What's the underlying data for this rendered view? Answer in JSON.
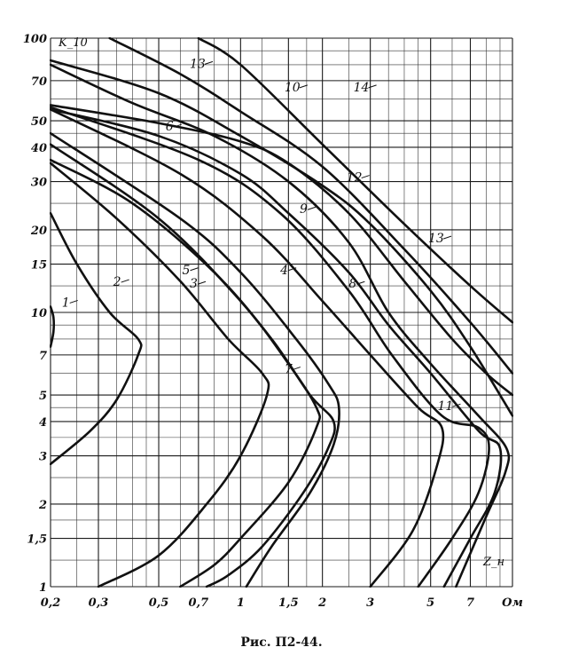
{
  "chart_data": {
    "type": "line",
    "title": "",
    "xlabel": "Z_н",
    "ylabel": "K_10",
    "xscale": "log",
    "yscale": "log",
    "xlim": [
      0.2,
      10
    ],
    "ylim": [
      1,
      100
    ],
    "grid": true,
    "x_ticks": [
      {
        "v": 0.2,
        "label": "0,2"
      },
      {
        "v": 0.3,
        "label": "0,3"
      },
      {
        "v": 0.5,
        "label": "0,5"
      },
      {
        "v": 0.7,
        "label": "0,7"
      },
      {
        "v": 1,
        "label": "1"
      },
      {
        "v": 1.5,
        "label": "1,5"
      },
      {
        "v": 2,
        "label": "2"
      },
      {
        "v": 3,
        "label": "3"
      },
      {
        "v": 5,
        "label": "5"
      },
      {
        "v": 7,
        "label": "7"
      },
      {
        "v": 10,
        "label": "Ом"
      }
    ],
    "y_ticks": [
      {
        "v": 1,
        "label": "1"
      },
      {
        "v": 1.5,
        "label": "1,5"
      },
      {
        "v": 2,
        "label": "2"
      },
      {
        "v": 3,
        "label": "3"
      },
      {
        "v": 4,
        "label": "4"
      },
      {
        "v": 5,
        "label": "5"
      },
      {
        "v": 7,
        "label": "7"
      },
      {
        "v": 10,
        "label": "10"
      },
      {
        "v": 15,
        "label": "15"
      },
      {
        "v": 20,
        "label": "20"
      },
      {
        "v": 30,
        "label": "30"
      },
      {
        "v": 40,
        "label": "40"
      },
      {
        "v": 50,
        "label": "50"
      },
      {
        "v": 70,
        "label": "70"
      },
      {
        "v": 100,
        "label": "100"
      }
    ],
    "series": [
      {
        "name": "1",
        "points": [
          [
            0.2,
            7.5
          ],
          [
            0.205,
            8.5
          ],
          [
            0.205,
            9.6
          ],
          [
            0.2,
            10.5
          ]
        ]
      },
      {
        "name": "2",
        "points": [
          [
            0.2,
            23
          ],
          [
            0.25,
            15
          ],
          [
            0.33,
            10
          ],
          [
            0.42,
            8
          ],
          [
            0.42,
            7
          ],
          [
            0.35,
            4.8
          ],
          [
            0.28,
            3.7
          ],
          [
            0.2,
            2.8
          ]
        ]
      },
      {
        "name": "3",
        "points": [
          [
            0.2,
            35
          ],
          [
            0.35,
            22
          ],
          [
            0.6,
            13
          ],
          [
            0.9,
            8
          ],
          [
            1.2,
            6
          ],
          [
            1.25,
            5
          ],
          [
            1.0,
            3
          ],
          [
            0.75,
            2
          ],
          [
            0.5,
            1.3
          ],
          [
            0.3,
            1
          ]
        ]
      },
      {
        "name": "4",
        "points": [
          [
            0.2,
            41
          ],
          [
            0.5,
            22
          ],
          [
            1.0,
            11
          ],
          [
            1.5,
            6.5
          ],
          [
            1.9,
            4.5
          ],
          [
            1.9,
            3.8
          ],
          [
            1.5,
            2.4
          ],
          [
            1.0,
            1.5
          ],
          [
            0.8,
            1.2
          ],
          [
            0.6,
            1
          ]
        ]
      },
      {
        "name": "5",
        "points": [
          [
            0.2,
            36
          ],
          [
            0.4,
            25
          ],
          [
            0.8,
            14
          ],
          [
            1.3,
            8
          ],
          [
            1.8,
            5
          ],
          [
            2.2,
            4
          ],
          [
            2.1,
            3.2
          ],
          [
            1.7,
            2.2
          ],
          [
            1.2,
            1.4
          ],
          [
            0.9,
            1.1
          ],
          [
            0.75,
            1
          ]
        ]
      },
      {
        "name": "7",
        "points": [
          [
            0.2,
            45
          ],
          [
            0.6,
            22
          ],
          [
            1.0,
            14
          ],
          [
            1.6,
            8
          ],
          [
            2.1,
            5.5
          ],
          [
            2.3,
            4.5
          ],
          [
            2.2,
            3.3
          ],
          [
            1.8,
            2.2
          ],
          [
            1.3,
            1.4
          ],
          [
            1.05,
            1
          ]
        ]
      },
      {
        "name": "8",
        "points": [
          [
            0.2,
            55
          ],
          [
            0.6,
            32
          ],
          [
            1.2,
            19
          ],
          [
            2.0,
            11
          ],
          [
            3.0,
            7
          ],
          [
            4.5,
            4.5
          ],
          [
            5.5,
            3.8
          ],
          [
            5.3,
            2.8
          ],
          [
            4.3,
            1.6
          ],
          [
            3.0,
            1
          ]
        ]
      },
      {
        "name": "9",
        "points": [
          [
            0.2,
            56
          ],
          [
            0.7,
            36
          ],
          [
            1.4,
            23
          ],
          [
            2.5,
            12
          ],
          [
            3.6,
            7
          ],
          [
            5.5,
            4.2
          ],
          [
            7.5,
            3.8
          ],
          [
            8.2,
            3.2
          ],
          [
            7.5,
            2.2
          ],
          [
            6.0,
            1.5
          ],
          [
            4.5,
            1
          ]
        ]
      },
      {
        "name": "6",
        "points": [
          [
            0.2,
            55
          ],
          [
            0.5,
            44
          ],
          [
            1.0,
            32
          ],
          [
            1.5,
            23
          ],
          [
            2.5,
            14
          ],
          [
            3.5,
            9
          ],
          [
            5.0,
            6
          ],
          [
            7.5,
            3.7
          ],
          [
            9.0,
            3.2
          ],
          [
            8.6,
            2.2
          ],
          [
            7.0,
            1.5
          ],
          [
            5.6,
            1
          ]
        ]
      },
      {
        "name": "11",
        "points": [
          [
            0.2,
            80
          ],
          [
            0.4,
            58
          ],
          [
            0.8,
            44
          ],
          [
            1.5,
            30
          ],
          [
            2.5,
            18
          ],
          [
            3.5,
            10
          ],
          [
            5.0,
            6.5
          ],
          [
            7.5,
            4.2
          ],
          [
            9.5,
            3.2
          ],
          [
            9.4,
            2.6
          ],
          [
            8.0,
            1.8
          ],
          [
            6.2,
            1
          ]
        ]
      },
      {
        "name": "12",
        "points": [
          [
            0.2,
            57
          ],
          [
            0.5,
            49
          ],
          [
            1.0,
            42
          ],
          [
            1.5,
            35
          ],
          [
            2.5,
            23
          ],
          [
            4.0,
            13
          ],
          [
            6.0,
            8
          ],
          [
            8.0,
            6
          ],
          [
            10.0,
            5
          ]
        ]
      },
      {
        "name": "13",
        "points": [
          [
            0.2,
            83
          ],
          [
            0.5,
            63
          ],
          [
            1.0,
            44
          ],
          [
            2.0,
            29
          ],
          [
            3.0,
            21
          ],
          [
            5.0,
            12
          ],
          [
            7.0,
            7.5
          ],
          [
            10.0,
            4.2
          ]
        ]
      },
      {
        "name": "10",
        "points": [
          [
            0.33,
            100
          ],
          [
            0.6,
            74
          ],
          [
            1.0,
            54
          ],
          [
            2.0,
            34
          ],
          [
            4.0,
            17
          ],
          [
            7.0,
            9.2
          ],
          [
            10.0,
            6
          ]
        ]
      },
      {
        "name": "14",
        "points": [
          [
            0.7,
            100
          ],
          [
            1.0,
            80
          ],
          [
            2.0,
            41
          ],
          [
            4.0,
            21
          ],
          [
            7.0,
            12.5
          ],
          [
            10.0,
            9.2
          ]
        ]
      }
    ],
    "curve_labels": [
      {
        "text": "1",
        "x": 0.22,
        "y": 10.5
      },
      {
        "text": "2",
        "x": 0.34,
        "y": 12.5
      },
      {
        "text": "3",
        "x": 0.65,
        "y": 12.3
      },
      {
        "text": "4",
        "x": 1.4,
        "y": 13.8
      },
      {
        "text": "5",
        "x": 0.61,
        "y": 13.8
      },
      {
        "text": "6",
        "x": 0.53,
        "y": 46
      },
      {
        "text": "7",
        "x": 1.45,
        "y": 6.0
      },
      {
        "text": "8",
        "x": 2.5,
        "y": 12.3
      },
      {
        "text": "9",
        "x": 1.65,
        "y": 23
      },
      {
        "text": "10",
        "x": 1.45,
        "y": 64
      },
      {
        "text": "11",
        "x": 5.3,
        "y": 4.4
      },
      {
        "text": "12",
        "x": 2.45,
        "y": 30
      },
      {
        "text": "13",
        "x": 0.65,
        "y": 78
      },
      {
        "text": "13",
        "x": 4.9,
        "y": 18
      },
      {
        "text": "14",
        "x": 2.6,
        "y": 64
      }
    ],
    "caption": "Рис. П2-44."
  },
  "colors": {
    "ink": "#111111",
    "paper": "#ffffff"
  }
}
